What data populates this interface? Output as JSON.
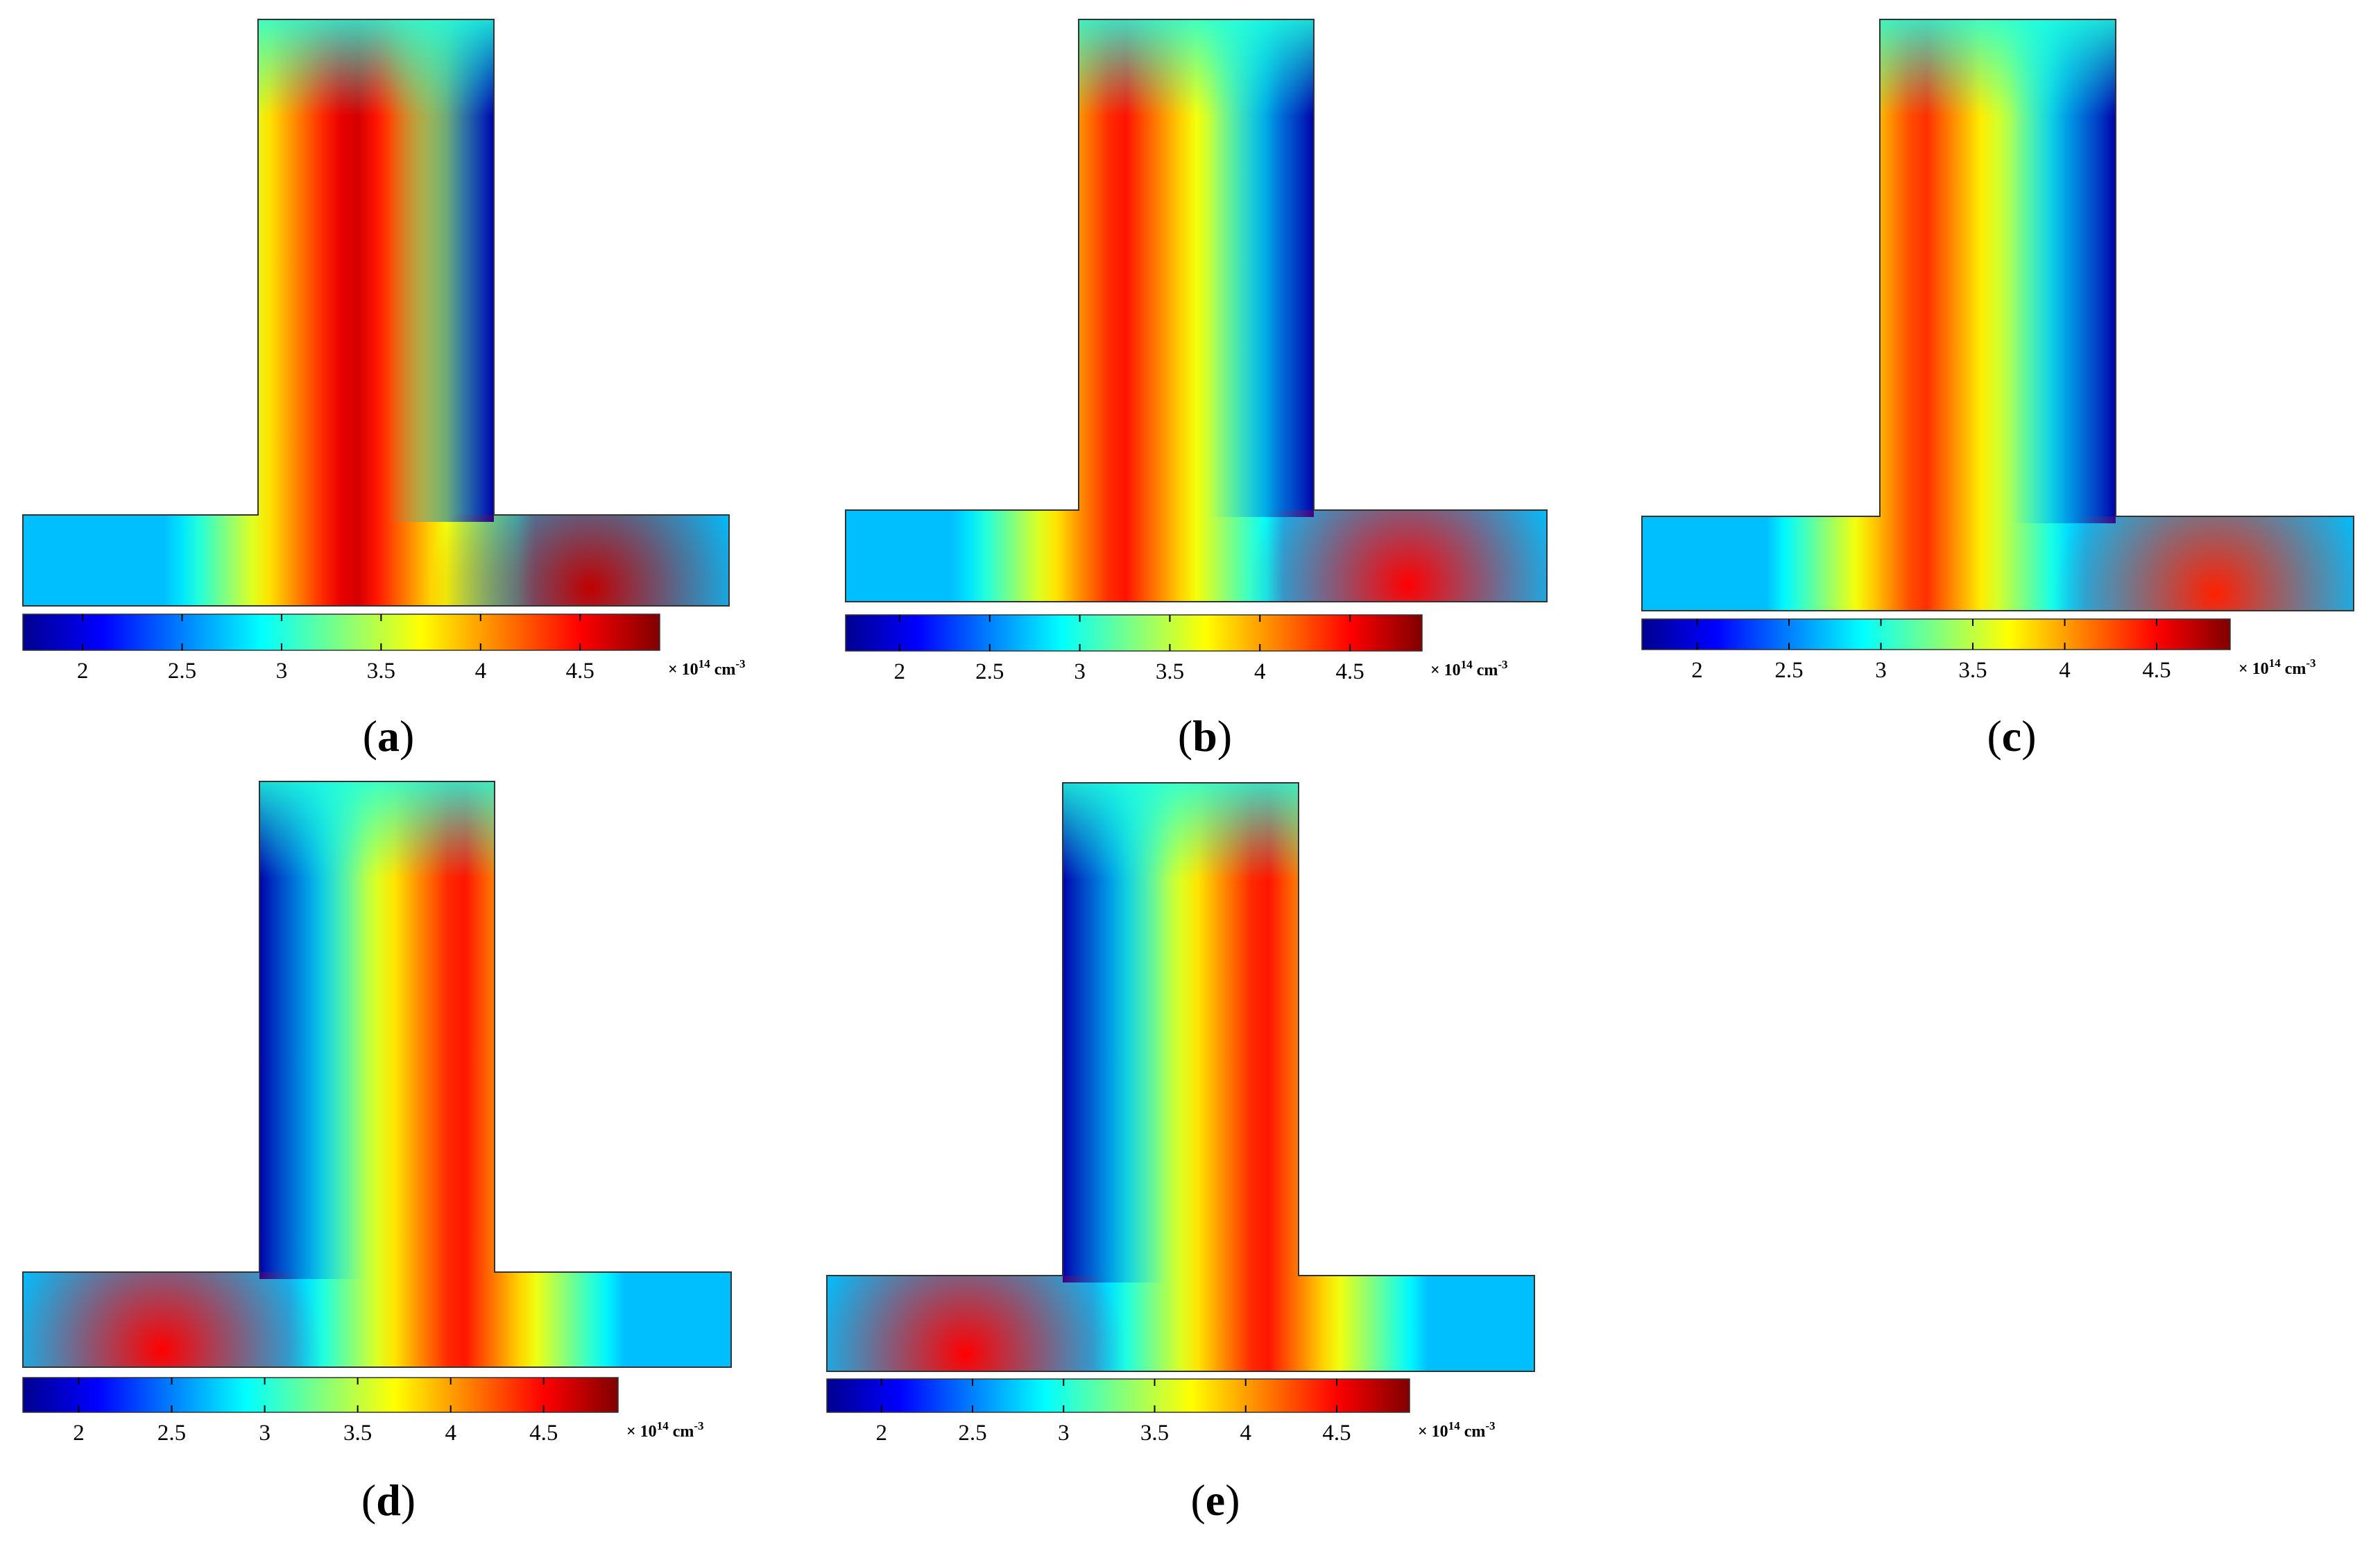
{
  "chart_data": {
    "type": "heatmap",
    "colormap": "jet",
    "colorbar": {
      "ticks": [
        "2",
        "2.5",
        "3",
        "3.5",
        "4",
        "4.5"
      ],
      "tick_values": [
        2,
        2.5,
        3,
        3.5,
        4,
        4.5
      ],
      "range": [
        1.7,
        4.9
      ],
      "unit_prefix": "× 10",
      "unit_exponent": "14",
      "unit_suffix": " cm",
      "unit_suffix_exponent": "-3"
    },
    "panels": [
      {
        "id": "a",
        "label_open": "(",
        "label_letter": "a",
        "label_close": ")",
        "hot_column": "center",
        "lobe": "right",
        "peak": 4.7,
        "min": 1.8
      },
      {
        "id": "b",
        "label_open": "(",
        "label_letter": "b",
        "label_close": ")",
        "hot_column": "left",
        "lobe": "right",
        "peak": 4.5,
        "min": 1.8
      },
      {
        "id": "c",
        "label_open": "(",
        "label_letter": "c",
        "label_close": ")",
        "hot_column": "left",
        "lobe": "right",
        "peak": 4.4,
        "min": 1.8
      },
      {
        "id": "d",
        "label_open": "(",
        "label_letter": "d",
        "label_close": ")",
        "hot_column": "right",
        "lobe": "left",
        "peak": 4.5,
        "min": 1.8
      },
      {
        "id": "e",
        "label_open": "(",
        "label_letter": "e",
        "label_close": ")",
        "hot_column": "right",
        "lobe": "left",
        "peak": 4.5,
        "min": 1.8
      }
    ]
  }
}
